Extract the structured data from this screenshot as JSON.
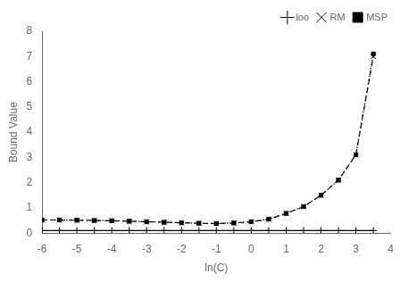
{
  "chart_data": {
    "type": "line",
    "xlabel": "ln(C)",
    "ylabel": "Bound Value",
    "x": [
      -6,
      -5.5,
      -5,
      -4.5,
      -4,
      -3.5,
      -3,
      -2.5,
      -2,
      -1.5,
      -1,
      -0.5,
      0,
      0.5,
      1,
      1.5,
      2,
      2.5,
      3,
      3.5
    ],
    "series": [
      {
        "name": "loo",
        "color": "#000000",
        "marker": "plus",
        "line_style": "solid",
        "values": [
          0.1,
          0.1,
          0.1,
          0.1,
          0.1,
          0.1,
          0.1,
          0.1,
          0.1,
          0.1,
          0.1,
          0.1,
          0.1,
          0.1,
          0.1,
          0.1,
          0.1,
          0.1,
          0.1,
          0.1
        ]
      },
      {
        "name": "RM",
        "color": "#000000",
        "marker": "x",
        "line_style": "dashed",
        "values": [
          0.52,
          0.52,
          0.51,
          0.5,
          0.49,
          0.47,
          0.45,
          0.43,
          0.41,
          0.39,
          0.38,
          0.4,
          0.45,
          0.55,
          0.78,
          1.05,
          1.5,
          2.1,
          3.1,
          7.0
        ]
      },
      {
        "name": "MSP",
        "color": "#000000",
        "marker": "square",
        "line_style": "dotted",
        "values": [
          0.52,
          0.52,
          0.51,
          0.5,
          0.49,
          0.47,
          0.45,
          0.43,
          0.41,
          0.39,
          0.38,
          0.4,
          0.45,
          0.55,
          0.78,
          1.05,
          1.5,
          2.1,
          3.1,
          7.1
        ]
      }
    ],
    "xlim": [
      -6,
      4
    ],
    "ylim": [
      0,
      8
    ],
    "xticks": [
      -6,
      -5,
      -4,
      -3,
      -2,
      -1,
      0,
      1,
      2,
      3,
      4
    ],
    "yticks": [
      0,
      1,
      2,
      3,
      4,
      5,
      6,
      7,
      8
    ],
    "grid": false,
    "legend": "upper right"
  }
}
